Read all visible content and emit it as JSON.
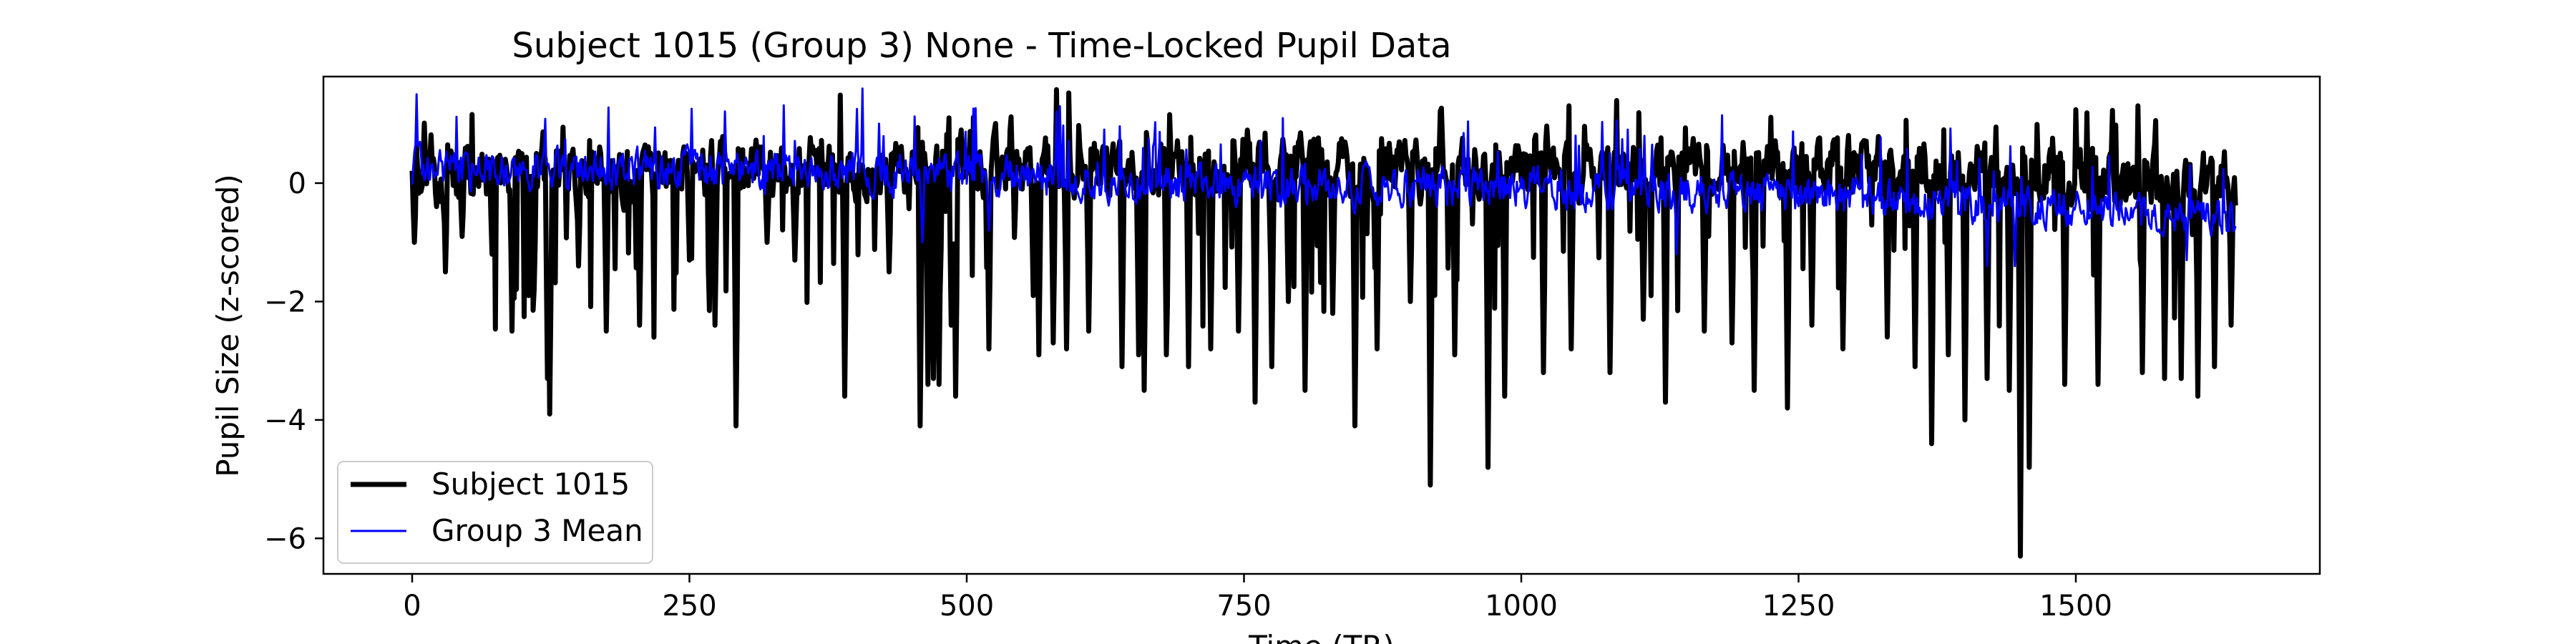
{
  "chart_data": {
    "type": "line",
    "title": "Subject 1015 (Group 3) None - Time-Locked Pupil Data",
    "xlabel": "Time (TR)",
    "ylabel": "Pupil Size (z-scored)",
    "xlim": [
      -80,
      1720
    ],
    "ylim": [
      -6.6,
      1.8
    ],
    "x_ticks": [
      0,
      250,
      500,
      750,
      1000,
      1250,
      1500
    ],
    "x_tick_labels": [
      "0",
      "250",
      "500",
      "750",
      "1000",
      "1250",
      "1500"
    ],
    "y_ticks": [
      0,
      -2,
      -4,
      -6
    ],
    "y_tick_labels": [
      "0",
      "−2",
      "−4",
      "−6"
    ],
    "grid": false,
    "legend_position": "lower-left",
    "n_points": 1645,
    "series": [
      {
        "name": "Subject 1015",
        "color": "#000000",
        "style": "thick",
        "baseline": 0.2,
        "noise": 0.42,
        "drift": [
          [
            0,
            0.1
          ],
          [
            500,
            0.35
          ],
          [
            900,
            0.2
          ],
          [
            1300,
            0.3
          ],
          [
            1645,
            0.0
          ]
        ],
        "dips": [
          [
            2,
            -1.0
          ],
          [
            30,
            -1.5
          ],
          [
            45,
            -0.9
          ],
          [
            72,
            -1.2
          ],
          [
            90,
            -2.5
          ],
          [
            105,
            -1.9
          ],
          [
            110,
            -1.8
          ],
          [
            122,
            -3.3
          ],
          [
            124,
            -3.9
          ],
          [
            150,
            -1.4
          ],
          [
            175,
            -2.5
          ],
          [
            205,
            -2.4
          ],
          [
            250,
            -1.3
          ],
          [
            273,
            -2.4
          ],
          [
            292,
            -4.1
          ],
          [
            320,
            -1.0
          ],
          [
            345,
            -1.3
          ],
          [
            390,
            -3.6
          ],
          [
            430,
            -1.5
          ],
          [
            458,
            -4.1
          ],
          [
            465,
            -3.4
          ],
          [
            470,
            -3.3
          ],
          [
            475,
            -3.4
          ],
          [
            486,
            -2.4
          ],
          [
            490,
            -3.6
          ],
          [
            520,
            -2.8
          ],
          [
            560,
            -1.9
          ],
          [
            565,
            -2.9
          ],
          [
            578,
            -2.7
          ],
          [
            590,
            -2.8
          ],
          [
            610,
            -2.5
          ],
          [
            640,
            -3.1
          ],
          [
            655,
            -2.9
          ],
          [
            660,
            -3.5
          ],
          [
            680,
            -2.9
          ],
          [
            700,
            -3.1
          ],
          [
            720,
            -2.8
          ],
          [
            745,
            -2.5
          ],
          [
            760,
            -3.7
          ],
          [
            775,
            -3.1
          ],
          [
            790,
            -2.0
          ],
          [
            805,
            -3.5
          ],
          [
            830,
            -2.2
          ],
          [
            850,
            -4.1
          ],
          [
            870,
            -2.8
          ],
          [
            900,
            -2.0
          ],
          [
            918,
            -5.1
          ],
          [
            940,
            -2.9
          ],
          [
            970,
            -4.8
          ],
          [
            985,
            -3.6
          ],
          [
            1020,
            -3.2
          ],
          [
            1045,
            -2.8
          ],
          [
            1080,
            -3.2
          ],
          [
            1110,
            -2.3
          ],
          [
            1130,
            -3.7
          ],
          [
            1165,
            -2.5
          ],
          [
            1190,
            -2.7
          ],
          [
            1210,
            -3.5
          ],
          [
            1240,
            -3.8
          ],
          [
            1262,
            -2.4
          ],
          [
            1290,
            -2.8
          ],
          [
            1330,
            -2.6
          ],
          [
            1355,
            -3.1
          ],
          [
            1370,
            -4.4
          ],
          [
            1385,
            -2.9
          ],
          [
            1400,
            -4.0
          ],
          [
            1420,
            -3.3
          ],
          [
            1440,
            -3.5
          ],
          [
            1450,
            -6.3
          ],
          [
            1458,
            -4.8
          ],
          [
            1490,
            -3.4
          ],
          [
            1520,
            -3.4
          ],
          [
            1560,
            -3.2
          ],
          [
            1580,
            -3.3
          ],
          [
            1595,
            -3.3
          ],
          [
            1610,
            -3.6
          ],
          [
            1625,
            -3.1
          ],
          [
            1640,
            -2.4
          ]
        ]
      },
      {
        "name": "Group 3 Mean",
        "color": "#0000ff",
        "style": "thin",
        "baseline": 0.15,
        "noise": 0.28,
        "drift": [
          [
            0,
            0.3
          ],
          [
            400,
            0.25
          ],
          [
            750,
            0.0
          ],
          [
            1100,
            -0.05
          ],
          [
            1400,
            -0.25
          ],
          [
            1645,
            -0.55
          ]
        ],
        "dips": [
          [
            460,
            -1.0
          ],
          [
            520,
            -0.8
          ],
          [
            1140,
            -1.2
          ],
          [
            1420,
            -1.4
          ],
          [
            1445,
            -1.4
          ],
          [
            1600,
            -1.3
          ]
        ]
      }
    ]
  }
}
